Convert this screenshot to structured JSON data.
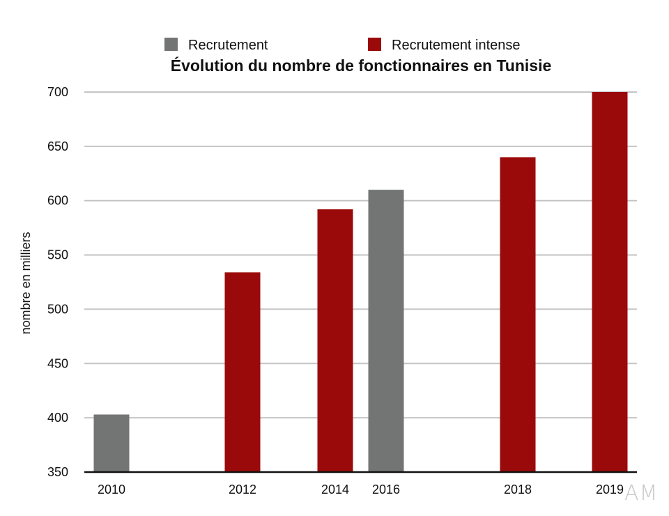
{
  "chart_data": {
    "type": "bar",
    "title": "Évolution du nombre de fonctionnaires en Tunisie",
    "xlabel": "",
    "ylabel": "nombre en milliers",
    "ylim": [
      350,
      700
    ],
    "yticks": [
      350,
      400,
      450,
      500,
      550,
      600,
      650,
      700
    ],
    "categories": [
      "2010",
      "2012",
      "2014",
      "2016",
      "2018",
      "2019"
    ],
    "values": [
      403,
      534,
      592,
      610,
      640,
      700
    ],
    "bar_groups": [
      "Recrutement",
      "Recrutement intense",
      "Recrutement intense",
      "Recrutement",
      "Recrutement intense",
      "Recrutement intense"
    ],
    "legend": [
      {
        "name": "Recrutement",
        "color": "#737574"
      },
      {
        "name": "Recrutement intense",
        "color": "#9b0a0a"
      }
    ],
    "legend_position": "top",
    "grid": true
  },
  "watermark": "AM"
}
